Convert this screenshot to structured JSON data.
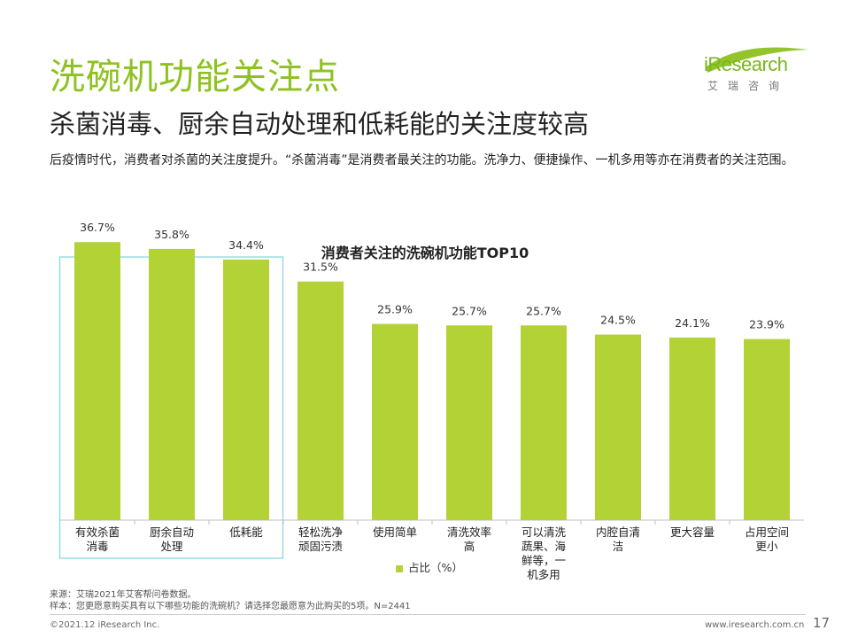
{
  "header": {
    "title": "洗碗机功能关注点",
    "subtitle": "杀菌消毒、厨余自动处理和低耗能的关注度较高",
    "description": "后疫情时代，消费者对杀菌的关注度提升。“杀菌消毒”是消费者最关注的功能。洗净力、便捷操作、一机多用等亦在消费者的关注范围。"
  },
  "logo": {
    "brand": "iResearch",
    "sub": "艾瑞咨询"
  },
  "colors": {
    "accent": "#8dc21f",
    "bar": "#b2d235",
    "highlight_border": "#7fd6e0"
  },
  "chart_data": {
    "type": "bar",
    "title": "消费者关注的洗碗机功能TOP10",
    "categories": [
      "有效杀菌消毒",
      "厨余自动处理",
      "低耗能",
      "轻松洗净顽固污渍",
      "使用简单",
      "清洗效率高",
      "可以清洗蔬果、海鲜等，一机多用",
      "内腔自清洁",
      "更大容量",
      "占用空间更小"
    ],
    "category_labels": [
      [
        "有效杀菌",
        "消毒"
      ],
      [
        "厨余自动",
        "处理"
      ],
      [
        "低耗能"
      ],
      [
        "轻松洗净",
        "顽固污渍"
      ],
      [
        "使用简单"
      ],
      [
        "清洗效率",
        "高"
      ],
      [
        "可以清洗",
        "蔬果、海",
        "鲜等，一",
        "机多用"
      ],
      [
        "内腔自清",
        "洁"
      ],
      [
        "更大容量"
      ],
      [
        "占用空间",
        "更小"
      ]
    ],
    "values": [
      36.7,
      35.8,
      34.4,
      31.5,
      25.9,
      25.7,
      25.7,
      24.5,
      24.1,
      23.9
    ],
    "value_labels": [
      "36.7%",
      "35.8%",
      "34.4%",
      "31.5%",
      "25.9%",
      "25.7%",
      "25.7%",
      "24.5%",
      "24.1%",
      "23.9%"
    ],
    "series_name": "占比（%）",
    "ylim": [
      0,
      40
    ],
    "highlighted": [
      0,
      1,
      2
    ],
    "legend": "bottom-center"
  },
  "footer": {
    "source": "来源：艾瑞2021年艾客帮问卷数据。",
    "sample": "样本：您更愿意购买具有以下哪些功能的洗碗机？请选择您最愿意为此购买的5项。N=2441",
    "copyright": "©2021.12 iResearch Inc.",
    "website": "www.iresearch.com.cn",
    "page": "17"
  }
}
